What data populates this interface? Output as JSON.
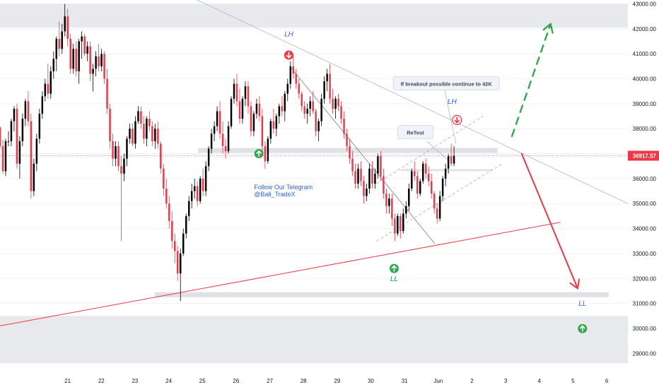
{
  "chart_data": {
    "type": "candlestick",
    "title": "",
    "x_ticks": [
      "21",
      "22",
      "23",
      "24",
      "25",
      "26",
      "27",
      "28",
      "29",
      "30",
      "31",
      "Jun",
      "2",
      "3",
      "4",
      "5",
      "6"
    ],
    "y_ticks": [
      "43000.00",
      "42000.00",
      "41000.00",
      "40000.00",
      "39000.00",
      "38000.00",
      "37000.00",
      "36000.00",
      "35000.00",
      "34000.00",
      "33000.00",
      "32000.00",
      "31000.00",
      "30000.00",
      "29000.00"
    ],
    "ylim": [
      28300,
      43100
    ],
    "xlim": [
      20.3,
      26.8
    ],
    "current_price": {
      "value": 36917.57,
      "label": "36917.57",
      "color": "#f23645"
    },
    "zones": [
      {
        "y_from": 42050,
        "y_to": 43000,
        "x_from": 20.3,
        "x_to": 26.8,
        "color": "#e8e9ec"
      },
      {
        "y_from": 28600,
        "y_to": 30500,
        "x_from": 20.3,
        "x_to": 26.8,
        "color": "#e8e9ec"
      },
      {
        "y_from": 37030,
        "y_to": 37230,
        "x_from": 22.35,
        "x_to": 25.45,
        "color": "#e0e1e5"
      },
      {
        "y_from": 36300,
        "y_to": 36380,
        "x_from": 24.45,
        "x_to": 25.4,
        "color": "#e0e1e5"
      },
      {
        "y_from": 31250,
        "y_to": 31450,
        "x_from": 21.9,
        "x_to": 26.6,
        "color": "#e0e1e5"
      }
    ],
    "candles_ohlc": [
      [
        38050,
        38100,
        37200,
        37300
      ],
      [
        37300,
        37550,
        36200,
        36300
      ],
      [
        36300,
        37600,
        36100,
        37500
      ],
      [
        37500,
        37900,
        37300,
        37500
      ],
      [
        37500,
        38400,
        37300,
        38300
      ],
      [
        38300,
        38900,
        37900,
        38800
      ],
      [
        38800,
        39000,
        36400,
        36600
      ],
      [
        36600,
        37700,
        36000,
        37500
      ],
      [
        37500,
        38600,
        37300,
        38400
      ],
      [
        38400,
        39200,
        38100,
        39100
      ],
      [
        39100,
        39500,
        38100,
        38300
      ],
      [
        38300,
        38600,
        35200,
        35500
      ],
      [
        35500,
        36800,
        35300,
        36600
      ],
      [
        36600,
        37800,
        36300,
        37600
      ],
      [
        37600,
        38800,
        37400,
        38600
      ],
      [
        38600,
        39500,
        38400,
        39300
      ],
      [
        39300,
        40000,
        39100,
        39800
      ],
      [
        39800,
        40600,
        39200,
        39400
      ],
      [
        39400,
        40500,
        39200,
        40300
      ],
      [
        40300,
        41100,
        40000,
        40800
      ],
      [
        40800,
        41700,
        40300,
        41600
      ],
      [
        41600,
        42300,
        40900,
        41200
      ],
      [
        41200,
        42200,
        41000,
        41900
      ],
      [
        41900,
        43000,
        41700,
        42500
      ],
      [
        42500,
        42800,
        41300,
        41600
      ],
      [
        41600,
        41800,
        40200,
        40400
      ],
      [
        40400,
        41400,
        40200,
        41200
      ],
      [
        41200,
        41500,
        40100,
        40300
      ],
      [
        40300,
        41600,
        39800,
        41500
      ],
      [
        41500,
        41900,
        40800,
        41700
      ],
      [
        41700,
        41800,
        40900,
        41000
      ],
      [
        41000,
        41500,
        40700,
        41300
      ],
      [
        41300,
        41500,
        39900,
        40200
      ],
      [
        40200,
        40600,
        39500,
        40400
      ],
      [
        40400,
        41100,
        40100,
        40900
      ],
      [
        40900,
        41400,
        40300,
        40500
      ],
      [
        40500,
        41200,
        40300,
        41000
      ],
      [
        41000,
        41100,
        39800,
        40000
      ],
      [
        40000,
        40400,
        38600,
        38800
      ],
      [
        38800,
        39000,
        37200,
        37500
      ],
      [
        37500,
        37800,
        36500,
        36800
      ],
      [
        36800,
        37500,
        36500,
        37300
      ],
      [
        37300,
        37500,
        36300,
        36500
      ],
      [
        36500,
        36900,
        33500,
        36200
      ],
      [
        36200,
        37000,
        35900,
        36800
      ],
      [
        36800,
        37700,
        36500,
        37600
      ],
      [
        37600,
        38200,
        37400,
        38000
      ],
      [
        38000,
        38200,
        37300,
        37400
      ],
      [
        37400,
        38500,
        37200,
        38300
      ],
      [
        38300,
        38900,
        38200,
        38700
      ],
      [
        38700,
        38900,
        38000,
        38200
      ],
      [
        38200,
        38500,
        37400,
        37600
      ],
      [
        37600,
        38500,
        37300,
        38400
      ],
      [
        38400,
        38700,
        37900,
        38100
      ],
      [
        38100,
        38300,
        37300,
        37500
      ],
      [
        37500,
        38200,
        37200,
        38000
      ],
      [
        38000,
        38300,
        37200,
        37400
      ],
      [
        37400,
        37500,
        36200,
        36400
      ],
      [
        36400,
        36600,
        35300,
        35600
      ],
      [
        35600,
        36000,
        34800,
        35000
      ],
      [
        35000,
        35300,
        34000,
        34300
      ],
      [
        34300,
        34700,
        33200,
        33500
      ],
      [
        33500,
        33800,
        32600,
        33100
      ],
      [
        33100,
        33300,
        31900,
        32200
      ],
      [
        32200,
        33200,
        31100,
        33000
      ],
      [
        33000,
        34000,
        32900,
        33800
      ],
      [
        33800,
        34600,
        33600,
        34500
      ],
      [
        34500,
        35300,
        34300,
        35100
      ],
      [
        35100,
        35800,
        34800,
        35500
      ],
      [
        35500,
        36000,
        35200,
        35700
      ],
      [
        35700,
        35900,
        34900,
        35100
      ],
      [
        35100,
        36100,
        35000,
        36000
      ],
      [
        36000,
        36400,
        35300,
        35500
      ],
      [
        35500,
        36700,
        35300,
        36500
      ],
      [
        36500,
        37300,
        36300,
        37200
      ],
      [
        37200,
        38000,
        37000,
        37800
      ],
      [
        37800,
        38300,
        37500,
        38100
      ],
      [
        38100,
        38900,
        37900,
        38700
      ],
      [
        38700,
        39100,
        37600,
        37800
      ],
      [
        37800,
        38300,
        37000,
        37300
      ],
      [
        37300,
        37600,
        36800,
        37100
      ],
      [
        37100,
        38300,
        37000,
        38100
      ],
      [
        38100,
        39300,
        38000,
        39200
      ],
      [
        39200,
        40000,
        39000,
        39800
      ],
      [
        39800,
        40200,
        38900,
        39100
      ],
      [
        39100,
        39600,
        38200,
        38400
      ],
      [
        38400,
        39300,
        38200,
        39200
      ],
      [
        39200,
        39900,
        38900,
        39700
      ],
      [
        39700,
        39900,
        38600,
        38900
      ],
      [
        38900,
        39100,
        37700,
        37900
      ],
      [
        37900,
        38700,
        37700,
        38600
      ],
      [
        38600,
        39200,
        38400,
        39000
      ],
      [
        39000,
        39300,
        38300,
        38500
      ],
      [
        38500,
        38800,
        37100,
        37300
      ],
      [
        37300,
        37500,
        36400,
        36700
      ],
      [
        36700,
        37700,
        36600,
        37600
      ],
      [
        37600,
        38400,
        37400,
        38300
      ],
      [
        38300,
        38800,
        37800,
        38000
      ],
      [
        38000,
        38600,
        37700,
        38500
      ],
      [
        38500,
        39000,
        38200,
        38900
      ],
      [
        38900,
        39300,
        38500,
        38700
      ],
      [
        38700,
        39500,
        38300,
        39400
      ],
      [
        39400,
        40000,
        39100,
        39800
      ],
      [
        39800,
        40700,
        39600,
        40500
      ],
      [
        40500,
        40900,
        40000,
        40200
      ],
      [
        40200,
        40400,
        39600,
        39800
      ],
      [
        39800,
        40000,
        39200,
        39400
      ],
      [
        39400,
        39500,
        38700,
        38900
      ],
      [
        38900,
        39100,
        38400,
        38600
      ],
      [
        38600,
        39000,
        38200,
        38800
      ],
      [
        38800,
        39300,
        38500,
        39100
      ],
      [
        39100,
        39500,
        38600,
        38700
      ],
      [
        38700,
        38800,
        37700,
        37900
      ],
      [
        37900,
        38400,
        37500,
        38300
      ],
      [
        38300,
        39400,
        38100,
        39200
      ],
      [
        39200,
        40100,
        39000,
        39900
      ],
      [
        39900,
        40400,
        39500,
        40200
      ],
      [
        40200,
        40600,
        39000,
        39200
      ],
      [
        39200,
        39600,
        38600,
        38800
      ],
      [
        38800,
        39300,
        38400,
        39200
      ],
      [
        39200,
        39400,
        38700,
        38900
      ],
      [
        38900,
        39100,
        38200,
        38400
      ],
      [
        38400,
        38700,
        37600,
        37800
      ],
      [
        37800,
        38000,
        37100,
        37300
      ],
      [
        37300,
        37600,
        36600,
        36800
      ],
      [
        36800,
        37100,
        36100,
        36300
      ],
      [
        36300,
        36600,
        35600,
        35800
      ],
      [
        35800,
        36600,
        35600,
        36400
      ],
      [
        36400,
        36700,
        35700,
        35900
      ],
      [
        35900,
        36100,
        35000,
        35300
      ],
      [
        35300,
        35800,
        35100,
        35600
      ],
      [
        35600,
        36600,
        35400,
        36400
      ],
      [
        36400,
        36700,
        35600,
        35800
      ],
      [
        35800,
        36400,
        35600,
        36200
      ],
      [
        36200,
        37000,
        36000,
        36900
      ],
      [
        36900,
        37100,
        35900,
        36100
      ],
      [
        36100,
        36400,
        35200,
        35400
      ],
      [
        35400,
        35600,
        34600,
        34900
      ],
      [
        34900,
        35400,
        34600,
        35200
      ],
      [
        35200,
        35400,
        34100,
        34400
      ],
      [
        34400,
        34600,
        33500,
        33800
      ],
      [
        33800,
        34600,
        33700,
        34500
      ],
      [
        34500,
        34600,
        33600,
        33900
      ],
      [
        33900,
        34800,
        33800,
        34600
      ],
      [
        34600,
        35100,
        34400,
        34900
      ],
      [
        34900,
        35800,
        34700,
        35600
      ],
      [
        35600,
        36400,
        35500,
        36300
      ],
      [
        36300,
        36700,
        35900,
        36100
      ],
      [
        36100,
        36300,
        35200,
        35400
      ],
      [
        35400,
        36000,
        35300,
        35900
      ],
      [
        35900,
        36700,
        35800,
        36600
      ],
      [
        36600,
        36800,
        36000,
        36200
      ],
      [
        36200,
        36500,
        35700,
        35900
      ],
      [
        35900,
        36200,
        35200,
        35400
      ],
      [
        35400,
        35500,
        34600,
        34800
      ],
      [
        34800,
        35000,
        34200,
        34400
      ],
      [
        34400,
        35500,
        34300,
        35300
      ],
      [
        35300,
        36100,
        35100,
        36000
      ],
      [
        36000,
        36600,
        35700,
        36400
      ],
      [
        36400,
        37000,
        36200,
        36900
      ],
      [
        36900,
        37400,
        36500,
        36600
      ],
      [
        36600,
        37300,
        36500,
        36918
      ]
    ],
    "trendlines": [
      {
        "x1": 20.3,
        "y1": 30100,
        "x2": 26.1,
        "y2": 34250,
        "color": "#f23645",
        "width": 1,
        "dash": ""
      },
      {
        "x1": 22.1,
        "y1": 43600,
        "x2": 26.8,
        "y2": 35000,
        "color": "#b2b5be",
        "width": 0.8,
        "dash": ""
      },
      {
        "x1": 23.3,
        "y1": 40500,
        "x2": 24.8,
        "y2": 33400,
        "color": "#787b86",
        "width": 0.8,
        "dash": ""
      },
      {
        "x1": 24.2,
        "y1": 33500,
        "x2": 25.5,
        "y2": 36600,
        "color": "#b2b5be",
        "width": 0.9,
        "dash": "4 3"
      },
      {
        "x1": 24.2,
        "y1": 35800,
        "x2": 25.3,
        "y2": 38500,
        "color": "#b2b5be",
        "width": 0.9,
        "dash": "4 3"
      },
      {
        "x1": 24.72,
        "y1": 37500,
        "x2": 24.95,
        "y2": 36700,
        "color": "#b2b5be",
        "width": 0.8,
        "dash": ""
      },
      {
        "x1": 24.9,
        "y1": 39600,
        "x2": 25.02,
        "y2": 37400,
        "color": "#b2b5be",
        "width": 0.8,
        "dash": ""
      }
    ],
    "arrows": [
      {
        "x1": 25.6,
        "y1": 37700,
        "x2": 26.0,
        "y2": 42200,
        "color": "#2fa84f",
        "dash": "10 8",
        "width": 2.4
      },
      {
        "x1": 25.7,
        "y1": 37000,
        "x2": 26.28,
        "y2": 31600,
        "color": "#f23645",
        "dash": "",
        "width": 2
      }
    ],
    "annotations": [
      {
        "text": "LH",
        "x": 23.29,
        "y": 41700,
        "color": "#2962ff",
        "style": "italic",
        "size": 10
      },
      {
        "text": "LH",
        "x": 24.98,
        "y": 39000,
        "color": "#2962ff",
        "style": "italic",
        "size": 10
      },
      {
        "text": "LL",
        "x": 24.38,
        "y": 31900,
        "color": "#089981",
        "style": "italic",
        "size": 10
      },
      {
        "text": "LL",
        "x": 26.33,
        "y": 30900,
        "color": "#2962ff",
        "style": "italic",
        "size": 10
      },
      {
        "text": "Follow Our Telegram",
        "x": 22.93,
        "y": 35570,
        "color": "#2962ff",
        "style": "normal",
        "size": 9
      },
      {
        "text": "@Bali_TradeX",
        "x": 22.93,
        "y": 35290,
        "color": "#2962ff",
        "style": "normal",
        "size": 9
      }
    ],
    "callouts": [
      {
        "text": "If breakout possible continue to 42K",
        "x": 24.92,
        "y": 39800,
        "w": 150
      },
      {
        "text": "ReTest",
        "x": 24.6,
        "y": 37850,
        "w": 50
      }
    ],
    "markers": [
      {
        "type": "down",
        "x": 23.29,
        "y": 40950,
        "color": "#f23645",
        "outline": false
      },
      {
        "type": "up",
        "x": 22.98,
        "y": 37000,
        "color": "#2fa84f",
        "outline": false
      },
      {
        "type": "up",
        "x": 24.38,
        "y": 32400,
        "color": "#2fa84f",
        "outline": false
      },
      {
        "type": "down",
        "x": 25.03,
        "y": 38350,
        "color": "#f23645",
        "outline": true
      },
      {
        "type": "up",
        "x": 26.33,
        "y": 29990,
        "color": "#2fa84f",
        "outline": false
      }
    ],
    "colors": {
      "up_candle": "#000000",
      "down_candle": "#f23645",
      "axis_text": "#131722",
      "grid": "#f0f3fa"
    }
  }
}
